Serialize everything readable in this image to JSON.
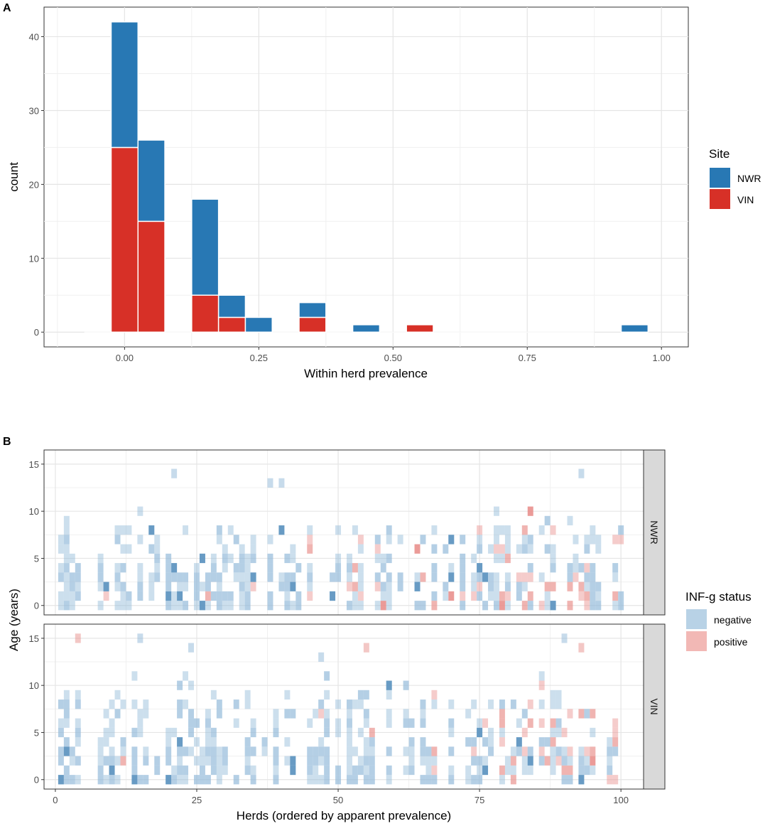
{
  "chart_data": [
    {
      "panel": "A",
      "type": "bar",
      "stacked": true,
      "xlabel": "Within herd prevalence",
      "ylabel": "count",
      "xlim": [
        -0.15,
        1.05
      ],
      "ylim": [
        -2,
        44
      ],
      "x_ticks": [
        0.0,
        0.25,
        0.5,
        0.75,
        1.0
      ],
      "x_tick_labels": [
        "0.00",
        "0.25",
        "0.50",
        "0.75",
        "1.00"
      ],
      "y_ticks": [
        0,
        10,
        20,
        30,
        40
      ],
      "y_tick_labels": [
        "0",
        "10",
        "20",
        "30",
        "40"
      ],
      "bin_width": 0.05,
      "bins": [
        0.0,
        0.05,
        0.15,
        0.2,
        0.25,
        0.35,
        0.45,
        0.55,
        0.95
      ],
      "series": [
        {
          "name": "VIN",
          "color": "#d73027",
          "values": [
            25,
            15,
            5,
            2,
            0,
            2,
            0,
            1,
            0
          ]
        },
        {
          "name": "NWR",
          "color": "#2878b4",
          "values": [
            17,
            11,
            13,
            3,
            2,
            2,
            1,
            0,
            1
          ]
        }
      ],
      "legend": {
        "title": "Site",
        "items": [
          "NWR",
          "VIN"
        ],
        "position": "right"
      },
      "grid": true
    },
    {
      "panel": "B",
      "type": "heatmap",
      "xlabel": "Herds (ordered by apparent prevalence)",
      "ylabel": "Age (years)",
      "xlim": [
        -2,
        104
      ],
      "x_ticks": [
        0,
        25,
        50,
        75,
        100
      ],
      "x_tick_labels": [
        "0",
        "25",
        "50",
        "75",
        "100"
      ],
      "y_ticks": [
        0,
        5,
        10,
        15
      ],
      "y_tick_labels": [
        "0",
        "5",
        "10",
        "15"
      ],
      "facets": [
        "NWR",
        "VIN"
      ],
      "legend": {
        "title": "INF-g status",
        "items": [
          {
            "name": "negative",
            "color": "#b8d2e6"
          },
          {
            "name": "positive",
            "color": "#f2b8b5"
          }
        ],
        "position": "right"
      },
      "note": "Each tile is an animal (herd index x age); overlapping semi-transparent tiles darken. Tile pattern approximated.",
      "grid": true
    }
  ],
  "labels": {
    "panel_a": "A",
    "panel_b": "B"
  }
}
